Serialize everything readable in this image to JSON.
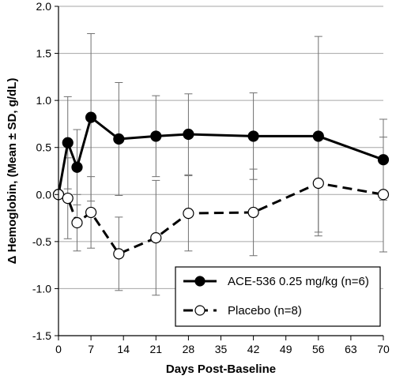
{
  "chart_data": {
    "type": "line",
    "xlabel": "Days Post-Baseline",
    "ylabel": "Δ Hemoglobin, (Mean ± SD, g/dL)",
    "xlim": [
      0,
      70
    ],
    "ylim": [
      -1.5,
      2.0
    ],
    "x_ticks": [
      0,
      7,
      14,
      21,
      28,
      35,
      42,
      49,
      56,
      63,
      70
    ],
    "y_ticks": [
      -1.5,
      -1.0,
      -0.5,
      0.0,
      0.5,
      1.0,
      1.5,
      2.0
    ],
    "y_tick_labels": [
      "-1.5",
      "-1.0",
      "-0.5",
      "0.0",
      "0.5",
      "1.0",
      "1.5",
      "2.0"
    ],
    "grid": "horizontal",
    "legend_position": "bottom-right",
    "series": [
      {
        "name": "ACE-536 0.25 mg/kg (n=6)",
        "marker": "filled-circle",
        "line": "solid",
        "color": "#000000",
        "x": [
          0,
          2,
          4,
          7,
          13,
          21,
          28,
          42,
          56,
          70
        ],
        "y": [
          0.0,
          0.55,
          0.29,
          0.82,
          0.59,
          0.62,
          0.64,
          0.62,
          0.62,
          0.37
        ],
        "err": [
          0.0,
          0.49,
          0.4,
          0.89,
          0.6,
          0.43,
          0.43,
          0.46,
          1.06,
          0.43
        ]
      },
      {
        "name": "Placebo (n=8)",
        "marker": "open-circle",
        "line": "dashed",
        "color": "#000000",
        "x": [
          0,
          2,
          4,
          7,
          13,
          21,
          28,
          42,
          56,
          70
        ],
        "y": [
          0.0,
          -0.04,
          -0.3,
          -0.19,
          -0.63,
          -0.46,
          -0.2,
          -0.19,
          0.12,
          0.0
        ],
        "err": [
          0.0,
          0.43,
          0.3,
          0.38,
          0.39,
          0.61,
          0.4,
          0.46,
          0.52,
          0.61
        ]
      }
    ]
  }
}
